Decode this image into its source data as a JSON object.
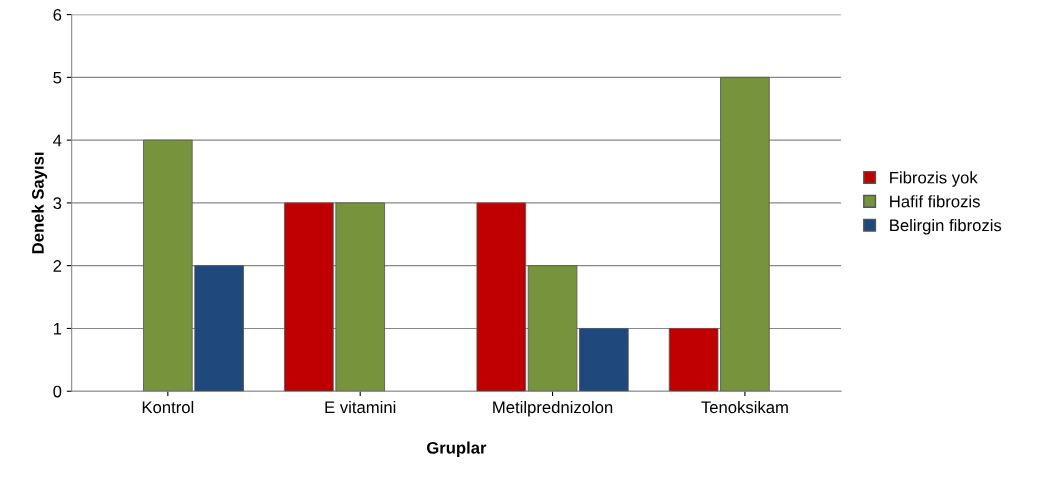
{
  "chart_data": {
    "type": "bar",
    "xlabel": "Gruplar",
    "ylabel": "Denek Sayısı",
    "categories": [
      "Kontrol",
      "E vitamini",
      "Metilprednizolon",
      "Tenoksikam"
    ],
    "series": [
      {
        "name": "Fibrozis yok",
        "color": "#c00000",
        "values": [
          null,
          3,
          3,
          1
        ]
      },
      {
        "name": "Hafif fibrozis",
        "color": "#77933c",
        "values": [
          4,
          3,
          2,
          5
        ]
      },
      {
        "name": "Belirgin fibrozis",
        "color": "#1f497d",
        "values": [
          2,
          null,
          1,
          null
        ]
      }
    ],
    "ylim": [
      0,
      6
    ],
    "yticks": [
      0,
      1,
      2,
      3,
      4,
      5,
      6
    ],
    "grid": "y",
    "legend": "right"
  }
}
